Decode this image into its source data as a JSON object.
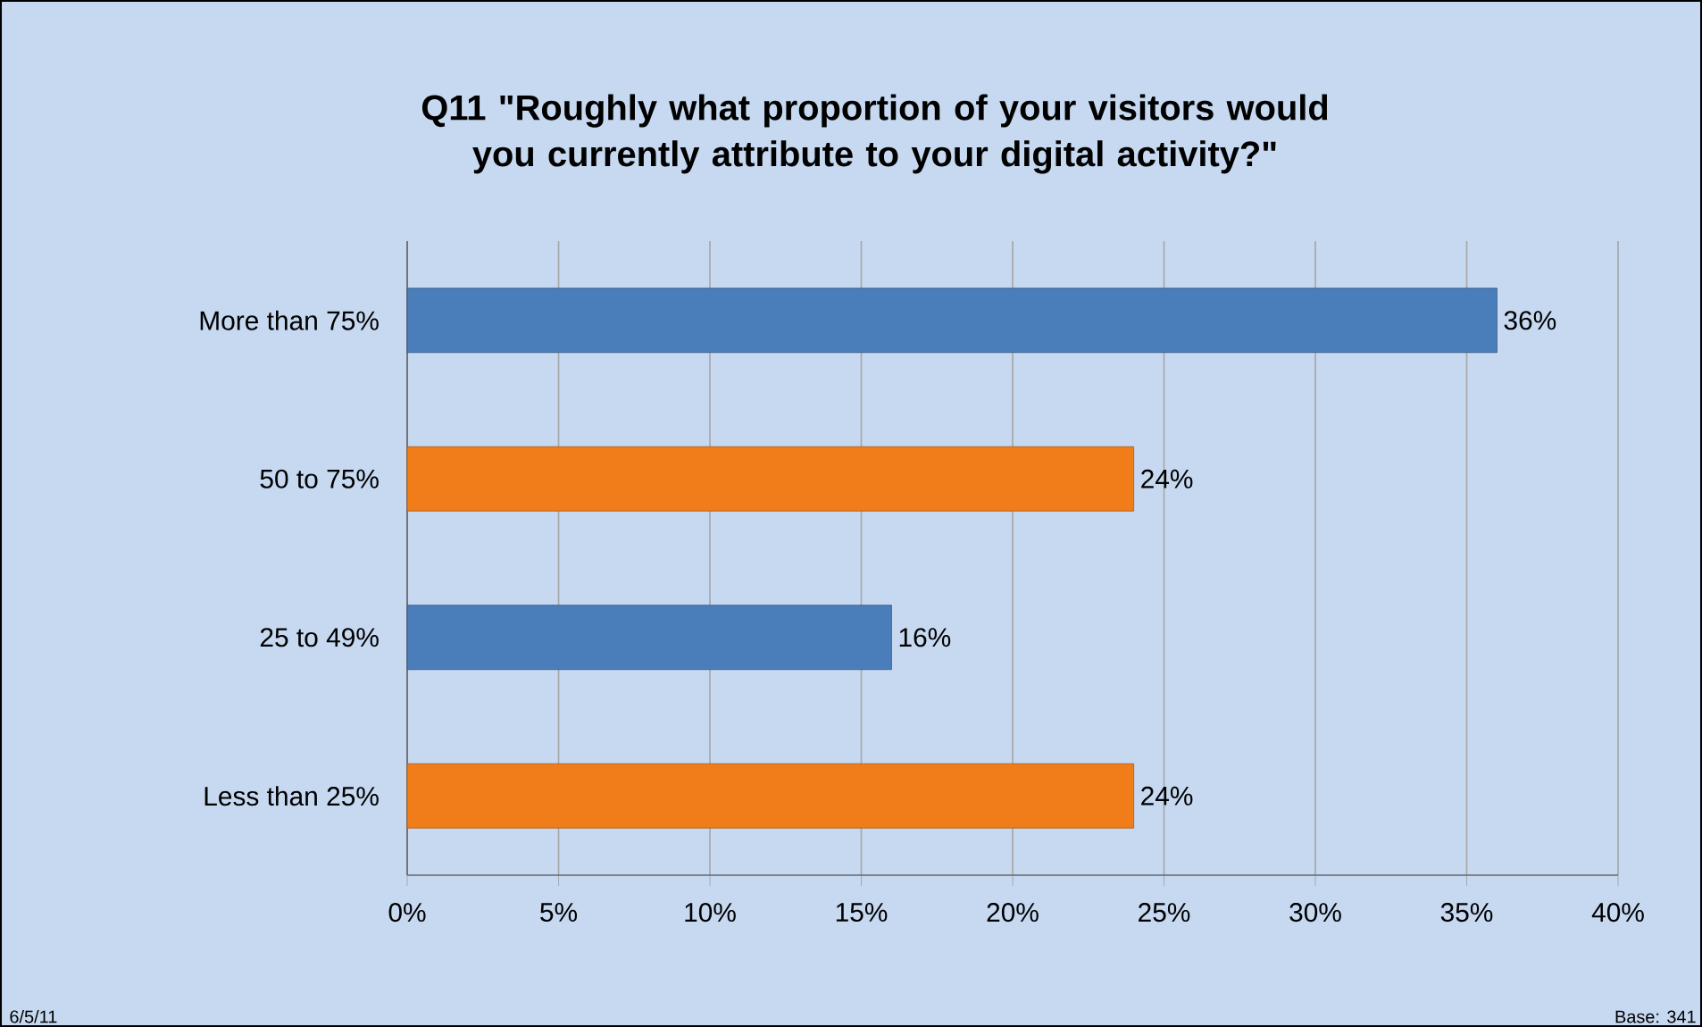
{
  "chart_data": {
    "type": "bar",
    "orientation": "horizontal",
    "title": "Q11 \"Roughly what proportion of your visitors would you currently attribute to your digital activity?\"",
    "categories": [
      "More than 75%",
      "50 to 75%",
      "25 to 49%",
      "Less than 25%"
    ],
    "values": [
      36,
      24,
      16,
      24
    ],
    "colors": [
      "#4a7ebb",
      "#f07d1a",
      "#4a7ebb",
      "#f07d1a"
    ],
    "value_labels": [
      "36%",
      "24%",
      "16%",
      "24%"
    ],
    "xlim": [
      0,
      40
    ],
    "xticks": [
      {
        "value": 0,
        "label": "0%"
      },
      {
        "value": 5,
        "label": "5%"
      },
      {
        "value": 10,
        "label": "10%"
      },
      {
        "value": 15,
        "label": "15%"
      },
      {
        "value": 20,
        "label": "20%"
      },
      {
        "value": 25,
        "label": "25%"
      },
      {
        "value": 30,
        "label": "30%"
      },
      {
        "value": 35,
        "label": "35%"
      },
      {
        "value": 40,
        "label": "40%"
      }
    ],
    "grid": "x",
    "annotations": [
      "6/5/11",
      "Base: 341"
    ]
  }
}
